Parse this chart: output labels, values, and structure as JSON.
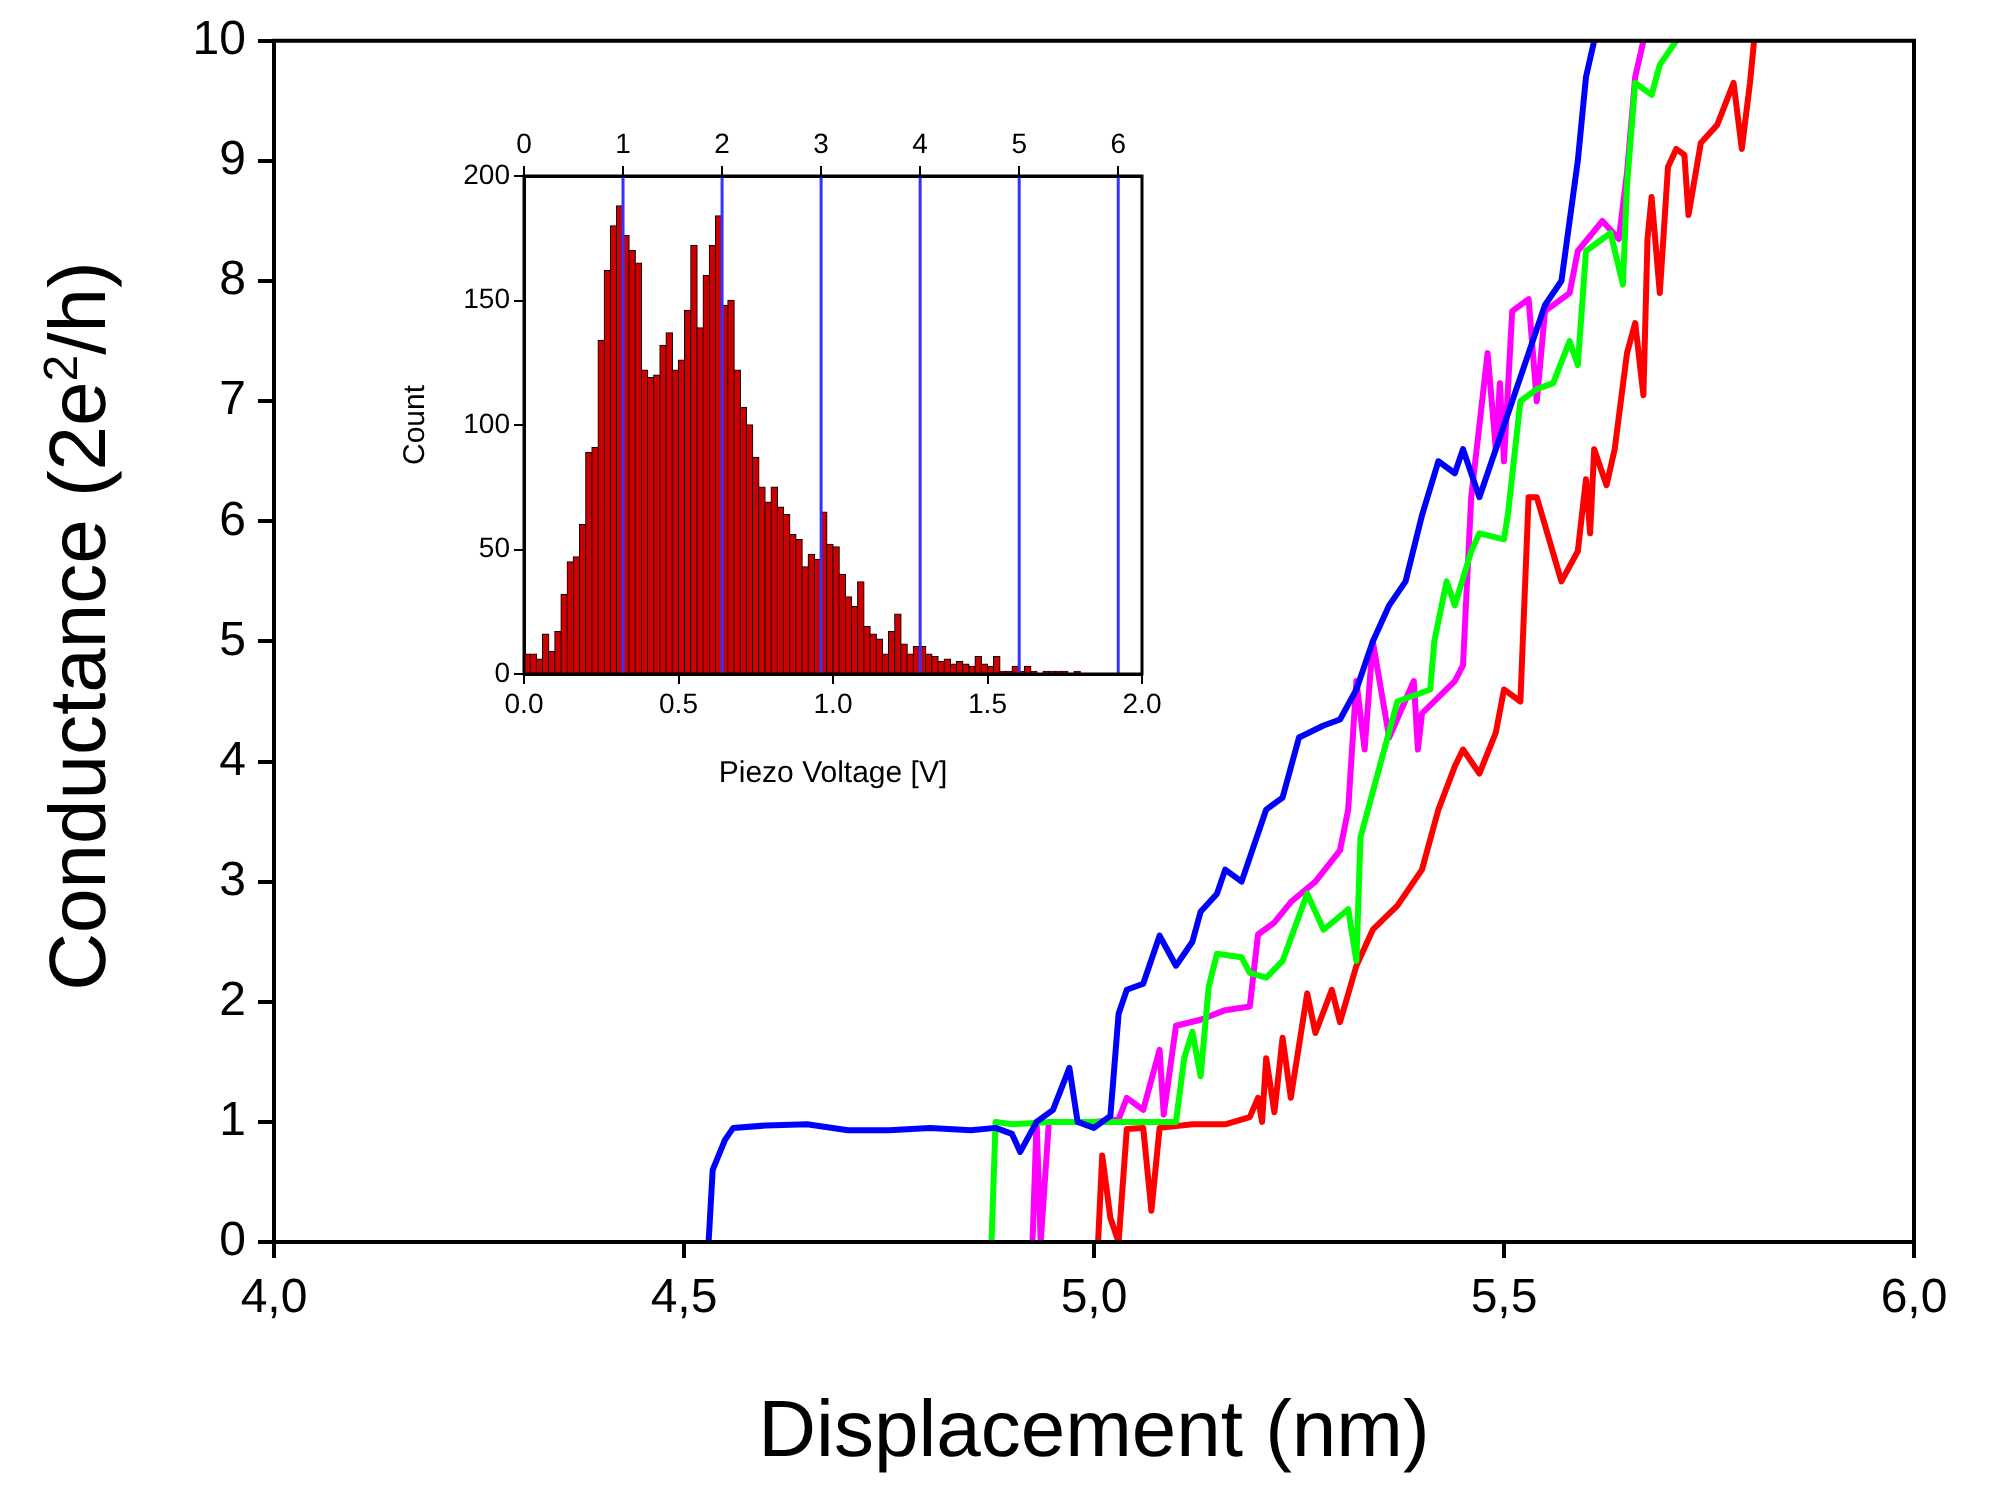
{
  "chart_data": [
    {
      "type": "line",
      "xlabel": "Displacement (nm)",
      "ylabel": "Conductance (2e$^{2}$/h)",
      "xlim": [
        4,
        6
      ],
      "xticks": [
        {
          "value": 4,
          "label": "4,0"
        },
        {
          "value": 4.5,
          "label": "4,5"
        },
        {
          "value": 5,
          "label": "5,0"
        },
        {
          "value": 5.5,
          "label": "5,5"
        },
        {
          "value": 6,
          "label": "6,0"
        }
      ],
      "ylim": [
        0,
        10
      ],
      "yticks": [
        0,
        1,
        2,
        3,
        4,
        5,
        6,
        7,
        8,
        9,
        10
      ],
      "series": [
        {
          "color": "#0000ff",
          "x": [
            4.53,
            4.535,
            4.55,
            4.56,
            4.6,
            4.65,
            4.7,
            4.75,
            4.8,
            4.85,
            4.88,
            4.9,
            4.91,
            4.93,
            4.95,
            4.97,
            4.98,
            5.0,
            5.02,
            5.03,
            5.04,
            5.06,
            5.08,
            5.1,
            5.12,
            5.13,
            5.15,
            5.16,
            5.18,
            5.2,
            5.21,
            5.23,
            5.25,
            5.28,
            5.3,
            5.32,
            5.34,
            5.36,
            5.38,
            5.4,
            5.42,
            5.44,
            5.45,
            5.47,
            5.5,
            5.53,
            5.55,
            5.57,
            5.59,
            5.6,
            5.61
          ],
          "values": [
            0,
            0.6,
            0.85,
            0.95,
            0.97,
            0.98,
            0.93,
            0.93,
            0.95,
            0.93,
            0.95,
            0.9,
            0.75,
            1.0,
            1.1,
            1.45,
            1.0,
            0.95,
            1.05,
            1.9,
            2.1,
            2.15,
            2.55,
            2.3,
            2.5,
            2.75,
            2.9,
            3.1,
            3.0,
            3.4,
            3.6,
            3.7,
            4.2,
            4.3,
            4.35,
            4.6,
            5.0,
            5.3,
            5.5,
            6.05,
            6.5,
            6.4,
            6.6,
            6.2,
            6.8,
            7.4,
            7.8,
            8.0,
            9.0,
            9.7,
            10
          ]
        },
        {
          "color": "#00ff00",
          "x": [
            4.875,
            4.88,
            4.9,
            4.95,
            5.0,
            5.05,
            5.08,
            5.1,
            5.11,
            5.12,
            5.13,
            5.14,
            5.15,
            5.18,
            5.19,
            5.21,
            5.23,
            5.26,
            5.28,
            5.31,
            5.32,
            5.325,
            5.35,
            5.37,
            5.41,
            5.415,
            5.43,
            5.44,
            5.46,
            5.47,
            5.5,
            5.505,
            5.52,
            5.54,
            5.56,
            5.58,
            5.59,
            5.6,
            5.62,
            5.63,
            5.645,
            5.65,
            5.66,
            5.68,
            5.69,
            5.71
          ],
          "values": [
            0,
            1.0,
            0.98,
            1.0,
            1.0,
            1.0,
            1.0,
            1.0,
            1.53,
            1.75,
            1.38,
            2.13,
            2.4,
            2.37,
            2.24,
            2.2,
            2.34,
            2.9,
            2.6,
            2.77,
            2.34,
            3.37,
            4.0,
            4.5,
            4.6,
            5.0,
            5.5,
            5.3,
            5.75,
            5.9,
            5.85,
            6.07,
            7.0,
            7.1,
            7.15,
            7.5,
            7.3,
            8.25,
            8.35,
            8.4,
            7.97,
            8.8,
            9.65,
            9.55,
            9.8,
            10
          ]
        },
        {
          "color": "#ff00ff",
          "x": [
            4.925,
            4.93,
            4.935,
            4.945,
            5.0,
            5.03,
            5.04,
            5.06,
            5.08,
            5.085,
            5.1,
            5.13,
            5.16,
            5.19,
            5.2,
            5.22,
            5.24,
            5.27,
            5.3,
            5.31,
            5.32,
            5.33,
            5.34,
            5.36,
            5.39,
            5.395,
            5.4,
            5.44,
            5.45,
            5.46,
            5.48,
            5.49,
            5.495,
            5.5,
            5.51,
            5.53,
            5.54,
            5.55,
            5.58,
            5.59,
            5.62,
            5.64,
            5.65,
            5.66,
            5.67
          ],
          "values": [
            0,
            1.0,
            0,
            1.0,
            1.0,
            1.02,
            1.2,
            1.1,
            1.6,
            1.06,
            1.8,
            1.85,
            1.93,
            1.96,
            2.56,
            2.66,
            2.83,
            3.0,
            3.26,
            3.6,
            4.67,
            4.1,
            5.0,
            4.2,
            4.67,
            4.1,
            4.4,
            4.67,
            4.8,
            6.2,
            7.4,
            6.6,
            7.15,
            6.5,
            7.75,
            7.85,
            7.0,
            7.75,
            7.9,
            8.25,
            8.5,
            8.35,
            8.9,
            9.7,
            10
          ]
        },
        {
          "color": "#ff0000",
          "x": [
            5.005,
            5.01,
            5.02,
            5.03,
            5.04,
            5.06,
            5.07,
            5.08,
            5.12,
            5.16,
            5.19,
            5.2,
            5.205,
            5.21,
            5.22,
            5.23,
            5.24,
            5.26,
            5.27,
            5.29,
            5.3,
            5.32,
            5.34,
            5.37,
            5.4,
            5.42,
            5.44,
            5.45,
            5.47,
            5.49,
            5.5,
            5.52,
            5.53,
            5.54,
            5.57,
            5.59,
            5.6,
            5.605,
            5.61,
            5.625,
            5.635,
            5.65,
            5.66,
            5.67,
            5.675,
            5.68,
            5.69,
            5.7,
            5.71,
            5.72,
            5.725,
            5.74,
            5.76,
            5.78,
            5.79,
            5.8,
            5.805
          ],
          "values": [
            0,
            0.72,
            0.2,
            0,
            0.94,
            0.95,
            0.26,
            0.95,
            0.98,
            0.98,
            1.04,
            1.2,
            1.0,
            1.53,
            1.08,
            1.7,
            1.2,
            2.07,
            1.74,
            2.1,
            1.83,
            2.3,
            2.6,
            2.8,
            3.1,
            3.6,
            3.96,
            4.1,
            3.9,
            4.24,
            4.6,
            4.5,
            6.2,
            6.2,
            5.5,
            5.75,
            6.35,
            5.9,
            6.6,
            6.3,
            6.6,
            7.4,
            7.65,
            7.05,
            8.35,
            8.7,
            7.9,
            8.95,
            9.1,
            9.05,
            8.55,
            9.15,
            9.3,
            9.65,
            9.1,
            9.65,
            10
          ]
        }
      ]
    },
    {
      "type": "histogram",
      "xlabel": "Piezo Voltage [V]",
      "ylabel": "Count",
      "color": "#cc0000",
      "bins": [
        0,
        0.02,
        0.04,
        0.06,
        0.08,
        0.1,
        0.12,
        0.14,
        0.16,
        0.18,
        0.2,
        0.22,
        0.24,
        0.26,
        0.28,
        0.3,
        0.32,
        0.34,
        0.36,
        0.38,
        0.4,
        0.42,
        0.44,
        0.46,
        0.48,
        0.5,
        0.52,
        0.54,
        0.56,
        0.58,
        0.6,
        0.62,
        0.64,
        0.66,
        0.68,
        0.7,
        0.72,
        0.74,
        0.76,
        0.78,
        0.8,
        0.82,
        0.84,
        0.86,
        0.88,
        0.9,
        0.92,
        0.94,
        0.96,
        0.98,
        1,
        1.02,
        1.04,
        1.06,
        1.08,
        1.1,
        1.12,
        1.14,
        1.16,
        1.18,
        1.2,
        1.22,
        1.24,
        1.26,
        1.28,
        1.3,
        1.32,
        1.34,
        1.36,
        1.38,
        1.4,
        1.42,
        1.44,
        1.46,
        1.48,
        1.5,
        1.52,
        1.54,
        1.56,
        1.58,
        1.6,
        1.62,
        1.64,
        1.66,
        1.68,
        1.7,
        1.72,
        1.74,
        1.76,
        1.78,
        1.8
      ],
      "values": [
        8,
        8,
        6,
        16,
        9,
        17,
        32,
        45,
        47,
        60,
        89,
        91,
        134,
        162,
        180,
        188,
        176,
        170,
        165,
        122,
        119,
        120,
        132,
        137,
        122,
        126,
        146,
        172,
        139,
        160,
        172,
        184,
        148,
        150,
        122,
        107,
        100,
        87,
        75,
        69,
        75,
        67,
        64,
        56,
        54,
        43,
        48,
        46,
        65,
        52,
        51,
        40,
        31,
        27,
        37,
        19,
        16,
        14,
        8,
        17,
        24,
        12,
        8,
        11,
        11,
        8,
        7,
        5,
        6,
        4,
        5,
        4,
        3,
        7,
        4,
        3,
        7,
        1,
        1,
        3,
        1,
        3,
        1,
        0,
        1,
        1,
        1,
        1,
        0,
        1
      ],
      "xlim": [
        0,
        2
      ],
      "xticks": [
        {
          "value": 0,
          "label": "0.0"
        },
        0.5,
        {
          "value": 1,
          "label": "1.0"
        },
        1.5,
        {
          "value": 2,
          "label": "2.0"
        }
      ],
      "ylim": [
        0,
        200
      ],
      "yticks": [
        0,
        50,
        100,
        150,
        200
      ],
      "x2lim": [
        0,
        6.24
      ],
      "x2ticks": [
        0,
        1,
        2,
        3,
        4,
        5,
        6
      ],
      "ref_lines": [
        {
          "axis": "x2",
          "value": 1,
          "color": "#3333ff"
        },
        {
          "axis": "x2",
          "value": 2,
          "color": "#3333ff"
        },
        {
          "axis": "x2",
          "value": 3,
          "color": "#3333ff"
        },
        {
          "axis": "x2",
          "value": 4,
          "color": "#3333ff"
        },
        {
          "axis": "x2",
          "value": 5,
          "color": "#3333ff"
        },
        {
          "axis": "x2",
          "value": 6,
          "color": "#3333ff"
        }
      ]
    }
  ]
}
